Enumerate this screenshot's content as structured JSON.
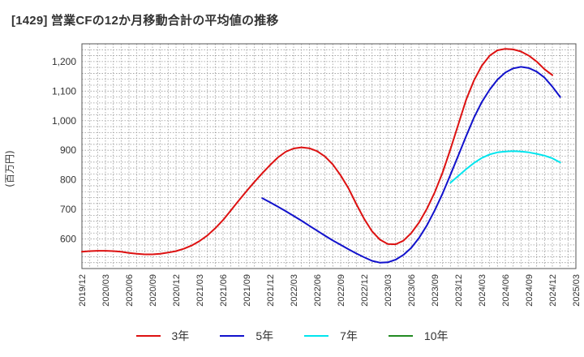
{
  "chart_data": {
    "type": "line",
    "title": "[1429]  営業CFの12か月移動合計の平均値の推移",
    "ylabel": "(百万円)",
    "xlabel": "",
    "ylim": [
      500,
      1260
    ],
    "yticks": [
      600,
      700,
      800,
      900,
      1000,
      1100,
      1200
    ],
    "ytick_labels": [
      "600",
      "700",
      "800",
      "900",
      "1,000",
      "1,100",
      "1,200"
    ],
    "xticks": [
      "2019/12",
      "2020/03",
      "2020/06",
      "2020/09",
      "2020/12",
      "2021/03",
      "2021/06",
      "2021/09",
      "2021/12",
      "2022/03",
      "2022/06",
      "2022/09",
      "2022/12",
      "2023/03",
      "2023/06",
      "2023/09",
      "2023/12",
      "2024/03",
      "2024/06",
      "2024/09",
      "2024/12",
      "2025/03"
    ],
    "grid": true,
    "legend": "bottom",
    "series": [
      {
        "name": "3年",
        "color": "#dd1111",
        "values": [
          [
            "2019/12",
            557
          ],
          [
            "2020/01",
            559
          ],
          [
            "2020/02",
            560
          ],
          [
            "2020/03",
            560
          ],
          [
            "2020/04",
            559
          ],
          [
            "2020/05",
            557
          ],
          [
            "2020/06",
            553
          ],
          [
            "2020/07",
            550
          ],
          [
            "2020/08",
            548
          ],
          [
            "2020/09",
            548
          ],
          [
            "2020/10",
            550
          ],
          [
            "2020/11",
            554
          ],
          [
            "2020/12",
            559
          ],
          [
            "2021/01",
            567
          ],
          [
            "2021/02",
            578
          ],
          [
            "2021/03",
            593
          ],
          [
            "2021/04",
            612
          ],
          [
            "2021/05",
            636
          ],
          [
            "2021/06",
            664
          ],
          [
            "2021/07",
            697
          ],
          [
            "2021/08",
            730
          ],
          [
            "2021/09",
            762
          ],
          [
            "2021/10",
            793
          ],
          [
            "2021/11",
            822
          ],
          [
            "2021/12",
            850
          ],
          [
            "2022/01",
            876
          ],
          [
            "2022/02",
            895
          ],
          [
            "2022/03",
            906
          ],
          [
            "2022/04",
            910
          ],
          [
            "2022/05",
            907
          ],
          [
            "2022/06",
            897
          ],
          [
            "2022/07",
            879
          ],
          [
            "2022/08",
            852
          ],
          [
            "2022/09",
            815
          ],
          [
            "2022/10",
            771
          ],
          [
            "2022/11",
            718
          ],
          [
            "2022/12",
            668
          ],
          [
            "2023/01",
            626
          ],
          [
            "2023/02",
            598
          ],
          [
            "2023/03",
            583
          ],
          [
            "2023/04",
            582
          ],
          [
            "2023/05",
            594
          ],
          [
            "2023/06",
            620
          ],
          [
            "2023/07",
            656
          ],
          [
            "2023/08",
            702
          ],
          [
            "2023/09",
            758
          ],
          [
            "2023/10",
            825
          ],
          [
            "2023/11",
            903
          ],
          [
            "2023/12",
            987
          ],
          [
            "2024/01",
            1071
          ],
          [
            "2024/02",
            1136
          ],
          [
            "2024/03",
            1186
          ],
          [
            "2024/04",
            1220
          ],
          [
            "2024/05",
            1238
          ],
          [
            "2024/06",
            1243
          ],
          [
            "2024/07",
            1241
          ],
          [
            "2024/08",
            1234
          ],
          [
            "2024/09",
            1220
          ],
          [
            "2024/10",
            1200
          ],
          [
            "2024/11",
            1174
          ],
          [
            "2024/12",
            1154
          ]
        ]
      },
      {
        "name": "5年",
        "color": "#1111cc",
        "values": [
          [
            "2021/11",
            738
          ],
          [
            "2021/12",
            724
          ],
          [
            "2022/01",
            709
          ],
          [
            "2022/02",
            694
          ],
          [
            "2022/03",
            678
          ],
          [
            "2022/04",
            662
          ],
          [
            "2022/05",
            645
          ],
          [
            "2022/06",
            628
          ],
          [
            "2022/07",
            611
          ],
          [
            "2022/08",
            595
          ],
          [
            "2022/09",
            580
          ],
          [
            "2022/10",
            565
          ],
          [
            "2022/11",
            551
          ],
          [
            "2022/12",
            538
          ],
          [
            "2023/01",
            526
          ],
          [
            "2023/02",
            520
          ],
          [
            "2023/03",
            521
          ],
          [
            "2023/04",
            530
          ],
          [
            "2023/05",
            546
          ],
          [
            "2023/06",
            570
          ],
          [
            "2023/07",
            604
          ],
          [
            "2023/08",
            646
          ],
          [
            "2023/09",
            697
          ],
          [
            "2023/10",
            754
          ],
          [
            "2023/11",
            817
          ],
          [
            "2023/12",
            882
          ],
          [
            "2024/01",
            948
          ],
          [
            "2024/02",
            1010
          ],
          [
            "2024/03",
            1063
          ],
          [
            "2024/04",
            1105
          ],
          [
            "2024/05",
            1139
          ],
          [
            "2024/06",
            1163
          ],
          [
            "2024/07",
            1177
          ],
          [
            "2024/08",
            1182
          ],
          [
            "2024/09",
            1178
          ],
          [
            "2024/10",
            1166
          ],
          [
            "2024/11",
            1146
          ],
          [
            "2024/12",
            1115
          ],
          [
            "2025/01",
            1080
          ]
        ]
      },
      {
        "name": "7年",
        "color": "#00e5ee",
        "values": [
          [
            "2023/11",
            790
          ],
          [
            "2023/12",
            813
          ],
          [
            "2024/01",
            836
          ],
          [
            "2024/02",
            857
          ],
          [
            "2024/03",
            874
          ],
          [
            "2024/04",
            886
          ],
          [
            "2024/05",
            893
          ],
          [
            "2024/06",
            896
          ],
          [
            "2024/07",
            897
          ],
          [
            "2024/08",
            896
          ],
          [
            "2024/09",
            893
          ],
          [
            "2024/10",
            888
          ],
          [
            "2024/11",
            882
          ],
          [
            "2024/12",
            873
          ],
          [
            "2025/01",
            859
          ]
        ]
      },
      {
        "name": "10年",
        "color": "#228b22",
        "values": []
      }
    ]
  }
}
